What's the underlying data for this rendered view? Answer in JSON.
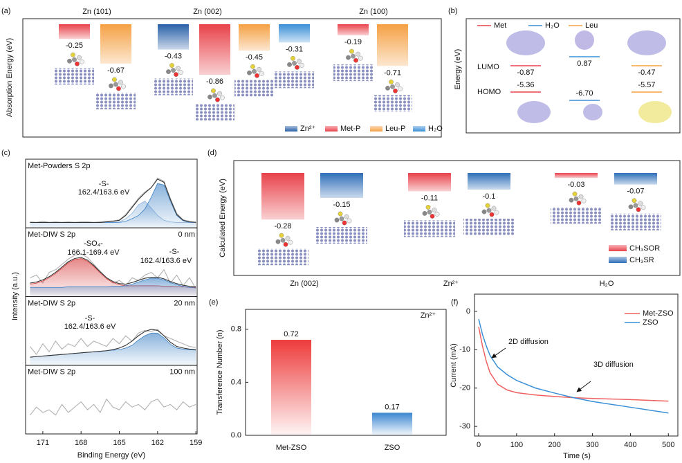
{
  "chart_data": [
    {
      "type": "energy-bar",
      "label": "(a)",
      "ylabel": "Absorption Energy (eV)",
      "categories": [
        "Zn (101)",
        "Zn (002)",
        "Zn (100)"
      ],
      "series": [
        {
          "name": "Zn²⁺",
          "color": "#2860a8",
          "values": [
            null,
            -0.43,
            null
          ]
        },
        {
          "name": "Met-P",
          "color": "#e8424a",
          "values": [
            -0.25,
            -0.86,
            -0.19
          ]
        },
        {
          "name": "Leu-P",
          "color": "#f5a043",
          "values": [
            -0.67,
            -0.45,
            -0.71
          ]
        },
        {
          "name": "H₂O",
          "color": "#3a8fd6",
          "values": [
            null,
            -0.31,
            null
          ]
        }
      ],
      "legend": "lower right"
    },
    {
      "type": "energy-level",
      "label": "(b)",
      "ylabel": "Energy (eV)",
      "categories": [
        "LUMO",
        "HOMO"
      ],
      "series": [
        {
          "name": "Met",
          "color": "#e8424a",
          "values": [
            -0.87,
            -5.36
          ]
        },
        {
          "name": "H₂O",
          "color": "#3a8fd6",
          "values": [
            0.87,
            -6.7
          ],
          "value_labels": [
            "0.87",
            "-6.70"
          ]
        },
        {
          "name": "Leu",
          "color": "#f5a043",
          "values": [
            -0.47,
            -5.57
          ]
        }
      ],
      "legend": "upper left"
    },
    {
      "type": "spectra",
      "label": "(c)",
      "xlabel": "Binding Energy (eV)",
      "ylabel": "Intensity (a.u.)",
      "xlim": [
        172.35,
        158.9
      ],
      "xticks": [
        171,
        168,
        165,
        162,
        159
      ],
      "x": [
        172,
        171.5,
        171,
        170.5,
        170,
        169.5,
        169,
        168.5,
        168,
        167.5,
        167,
        166.5,
        166,
        165.5,
        165,
        164.5,
        164,
        163.5,
        163,
        162.5,
        162,
        161.5,
        161,
        160.5,
        160,
        159.5,
        159
      ],
      "panels": [
        {
          "title": "Met-Powders S 2p",
          "annotations": [
            {
              "text": "-S-",
              "color": "#2a7cc4"
            },
            {
              "text": "162.4/163.6 eV",
              "color": "#2a7cc4"
            }
          ],
          "series": [
            {
              "color": "#b0b0b0",
              "values": [
                6,
                5,
                7,
                5,
                6,
                5,
                6,
                5,
                6,
                6,
                5,
                6,
                7,
                8,
                10,
                20,
                35,
                50,
                62,
                70,
                88,
                82,
                50,
                22,
                10,
                7,
                6
              ]
            },
            {
              "color": "#8fb5dd",
              "fill": true,
              "values": [
                5,
                5,
                5,
                5,
                5,
                5,
                5,
                5,
                5,
                5,
                5,
                5,
                5,
                5,
                6,
                12,
                22,
                38,
                45,
                32,
                18,
                9,
                6,
                5,
                5,
                5,
                5
              ]
            },
            {
              "color": "#3a7fc4",
              "fill": true,
              "values": [
                5,
                5,
                5,
                5,
                5,
                5,
                5,
                5,
                5,
                5,
                5,
                5,
                5,
                5,
                5,
                7,
                12,
                18,
                30,
                52,
                78,
                75,
                45,
                18,
                8,
                5,
                5
              ]
            },
            {
              "color": "#333333",
              "values": [
                5,
                5,
                5,
                5,
                5,
                5,
                5,
                5,
                5,
                5,
                5,
                5,
                6,
                7,
                9,
                18,
                33,
                48,
                60,
                70,
                86,
                80,
                48,
                20,
                9,
                6,
                5
              ]
            }
          ]
        },
        {
          "title": "Met-DIW S 2p",
          "depth": "0 nm",
          "annotations": [
            {
              "text": "-SO₄-",
              "color": "#d63a3a"
            },
            {
              "text": "166.1-169.4 eV",
              "color": "#d63a3a"
            },
            {
              "text": "-S-",
              "color": "#2a7cc4"
            },
            {
              "text": "162.4/163.6 eV",
              "color": "#2a7cc4"
            }
          ],
          "series": [
            {
              "color": "#b0b0b0",
              "values": [
                30,
                35,
                20,
                40,
                45,
                55,
                65,
                72,
                75,
                68,
                55,
                42,
                30,
                20,
                25,
                15,
                30,
                25,
                35,
                40,
                30,
                45,
                20,
                35,
                15,
                30,
                10
              ]
            },
            {
              "color": "#d63a3a",
              "fill": true,
              "values": [
                18,
                20,
                24,
                30,
                38,
                48,
                58,
                64,
                66,
                61,
                51,
                39,
                28,
                21,
                17,
                15,
                15,
                15,
                15,
                15,
                15,
                14,
                14,
                13,
                13,
                12,
                12
              ]
            },
            {
              "color": "#3a7fc4",
              "fill": true,
              "values": [
                12,
                12,
                12,
                12,
                12,
                12,
                13,
                13,
                13,
                13,
                13,
                13,
                13,
                14,
                14,
                15,
                18,
                22,
                26,
                29,
                29,
                26,
                21,
                17,
                14,
                12,
                11
              ]
            },
            {
              "color": "#333333",
              "values": [
                20,
                22,
                26,
                32,
                40,
                50,
                60,
                66,
                68,
                63,
                53,
                41,
                30,
                23,
                19,
                18,
                21,
                25,
                29,
                31,
                31,
                28,
                23,
                19,
                16,
                14,
                13
              ]
            }
          ]
        },
        {
          "title": "Met-DIW S 2p",
          "depth": "20 nm",
          "annotations": [
            {
              "text": "-S-",
              "color": "#2a7cc4"
            },
            {
              "text": "162.4/163.6 eV",
              "color": "#2a7cc4"
            }
          ],
          "series": [
            {
              "color": "#b0b0b0",
              "values": [
                30,
                15,
                35,
                20,
                40,
                25,
                35,
                30,
                45,
                30,
                40,
                35,
                30,
                45,
                35,
                50,
                40,
                55,
                60,
                58,
                62,
                50,
                45,
                40,
                35,
                30,
                28
              ]
            },
            {
              "color": "#3a7fc4",
              "fill": true,
              "values": [
                10,
                11,
                12,
                13,
                14,
                15,
                16,
                17,
                18,
                19,
                20,
                21,
                22,
                23,
                24,
                27,
                32,
                42,
                50,
                55,
                55,
                46,
                34,
                27,
                25,
                24,
                23
              ]
            },
            {
              "color": "#333333",
              "values": [
                10,
                11,
                12,
                13,
                14,
                15,
                16,
                17,
                18,
                19,
                20,
                21,
                22,
                24,
                27,
                32,
                40,
                50,
                58,
                62,
                60,
                50,
                38,
                30,
                27,
                25,
                24
              ]
            }
          ]
        },
        {
          "title": "Met-DIW S 2p",
          "depth": "100 nm",
          "annotations": [],
          "series": [
            {
              "color": "#b0b0b0",
              "values": [
                30,
                45,
                35,
                40,
                30,
                50,
                35,
                45,
                55,
                40,
                50,
                35,
                60,
                45,
                40,
                55,
                45,
                50,
                40,
                55,
                60,
                45,
                50,
                40,
                55,
                45,
                50
              ]
            }
          ]
        }
      ]
    },
    {
      "type": "energy-bar",
      "label": "(d)",
      "ylabel": "Calculated Energy (eV)",
      "categories": [
        "Zn (002)",
        "Zn²⁺",
        "H₂O"
      ],
      "series": [
        {
          "name": "CH₃SOR",
          "color": "#e8424a",
          "values": [
            -0.28,
            -0.11,
            -0.03
          ]
        },
        {
          "name": "CH₃SR",
          "color": "#2f6fb8",
          "values": [
            -0.15,
            -0.1,
            -0.07
          ]
        }
      ],
      "legend": "lower right"
    },
    {
      "type": "bar",
      "label": "(e)",
      "ylabel": "Transference Number (n)",
      "annotation": "Zn²⁺",
      "categories": [
        "Met-ZSO",
        "ZSO"
      ],
      "values": [
        0.72,
        0.17
      ],
      "colors": [
        "#ee3b3b",
        "#3a86d0"
      ],
      "ylim": [
        0,
        0.95
      ],
      "yticks": [
        {
          "value": 0,
          "label": "0.0"
        },
        {
          "value": 0.4,
          "label": "0.4"
        },
        {
          "value": 0.8,
          "label": "0.8"
        }
      ]
    },
    {
      "type": "line",
      "label": "(f)",
      "xlabel": "Time (s)",
      "ylabel": "Current (mA)",
      "x": [
        0,
        10,
        20,
        30,
        50,
        75,
        100,
        150,
        200,
        250,
        300,
        400,
        500
      ],
      "series": [
        {
          "name": "Met-ZSO",
          "color": "#f06060",
          "values": [
            -4,
            -9,
            -13,
            -16,
            -19,
            -20.5,
            -21.2,
            -21.8,
            -22.2,
            -22.5,
            -22.7,
            -23,
            -23.4
          ]
        },
        {
          "name": "ZSO",
          "color": "#3a8fd6",
          "values": [
            -2,
            -6,
            -9,
            -11.5,
            -14.5,
            -16.5,
            -18,
            -20,
            -21.3,
            -22.5,
            -23.5,
            -25,
            -26.5
          ]
        }
      ],
      "xlim": [
        -11,
        525
      ],
      "xticks": [
        0,
        100,
        200,
        300,
        400,
        500
      ],
      "ylim": [
        -32.5,
        4.5
      ],
      "yticks": [
        0,
        -10,
        -20,
        -30
      ],
      "annotations": [
        "2D diffusion",
        "3D diffusion"
      ],
      "legend": "upper right"
    }
  ]
}
